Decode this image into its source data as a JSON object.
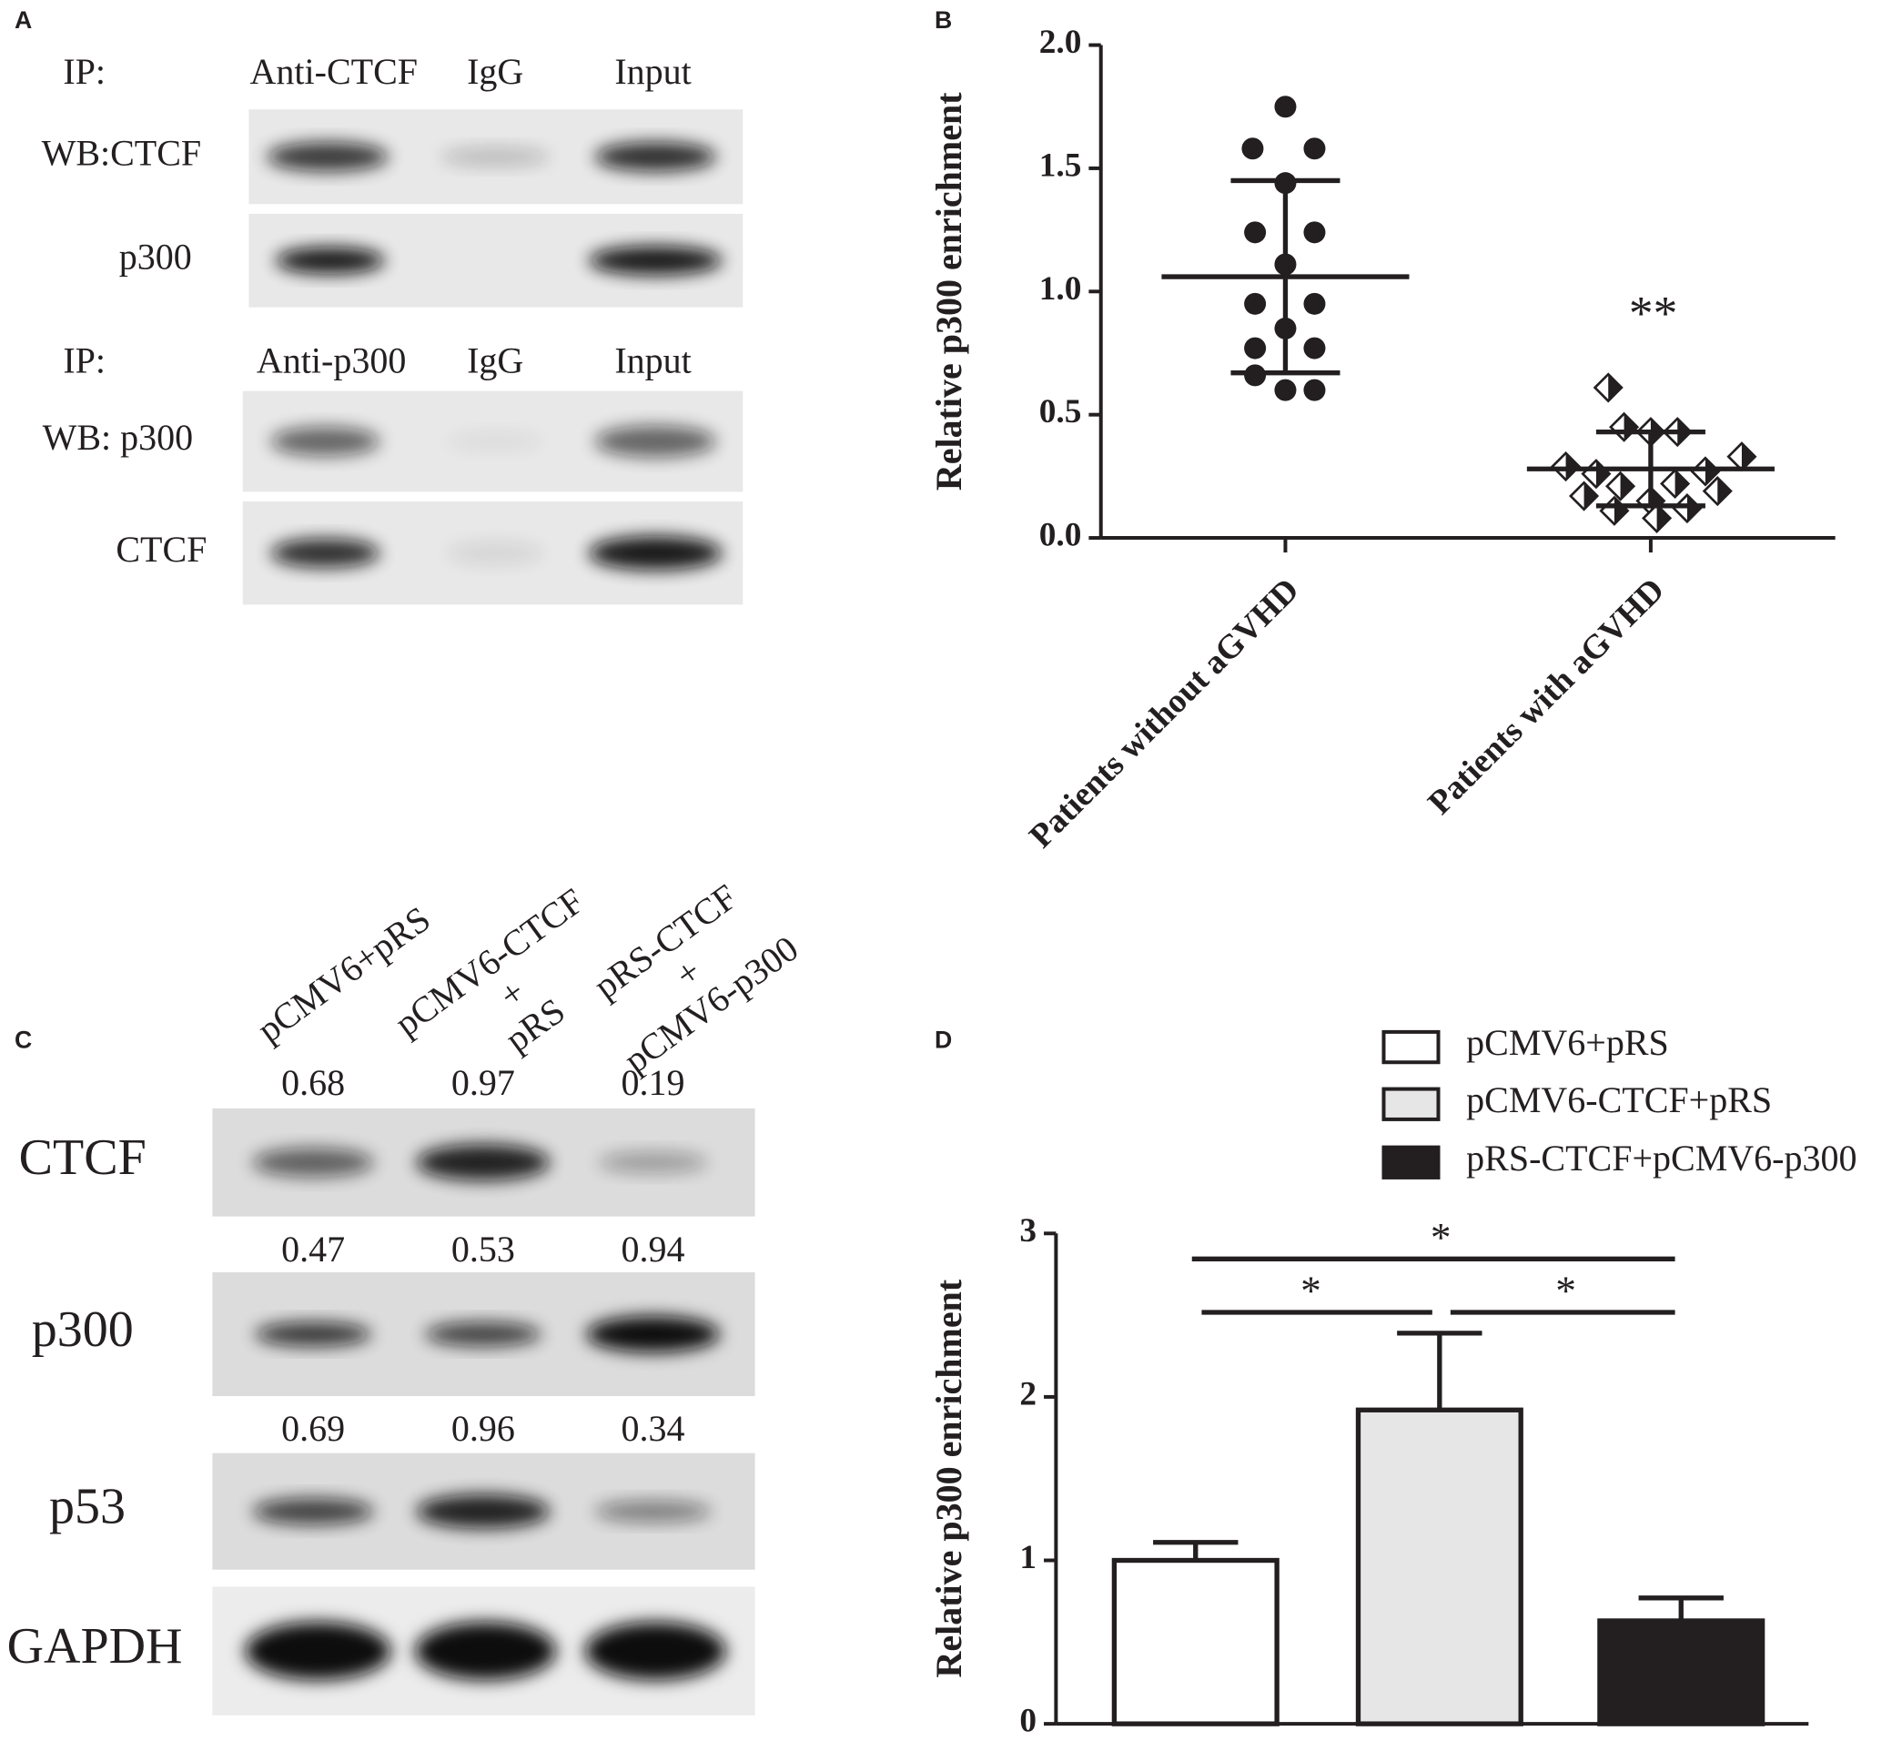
{
  "blot_a": {
    "panel_label": "A",
    "sections": [
      {
        "ip_label": "IP:",
        "columns": [
          "Anti-CTCF",
          "IgG",
          "Input"
        ],
        "rows": [
          "WB:CTCF",
          "p300"
        ]
      },
      {
        "ip_label": "IP:",
        "columns": [
          "Anti-p300",
          "IgG",
          "Input"
        ],
        "rows": [
          "WB: p300",
          "CTCF"
        ]
      }
    ]
  },
  "blot_c": {
    "panel_label": "C",
    "lanes": [
      [
        "pCMV6+pRS"
      ],
      [
        "pCMV6-CTCF",
        "+",
        "pRS"
      ],
      [
        "pRS-CTCF",
        "+",
        "pCMV6-p300"
      ]
    ],
    "rows": [
      {
        "name": "CTCF",
        "values": [
          "0.68",
          "0.97",
          "0.19"
        ]
      },
      {
        "name": "p300",
        "values": [
          "0.47",
          "0.53",
          "0.94"
        ]
      },
      {
        "name": "p53",
        "values": [
          "0.69",
          "0.96",
          "0.34"
        ]
      },
      {
        "name": "GAPDH"
      }
    ]
  },
  "chart_data": [
    {
      "type": "scatter",
      "panel_label": "B",
      "ylabel": "Relative p300 enrichment",
      "categories": [
        "Patients without aGVHD",
        "Patients with aGVHD"
      ],
      "ylim": [
        0,
        2
      ],
      "yticks": [
        {
          "value": 0,
          "label": "0.0"
        },
        {
          "value": 0.5,
          "label": "0.5"
        },
        {
          "value": 1,
          "label": "1.0"
        },
        {
          "value": 1.5,
          "label": "1.5"
        },
        {
          "value": 2,
          "label": "2.0"
        }
      ],
      "series": [
        {
          "marker": "circle",
          "color": "#231f20",
          "values": [
            1.75,
            1.58,
            1.58,
            1.44,
            1.24,
            1.24,
            1.11,
            0.95,
            0.95,
            0.85,
            0.77,
            0.77,
            0.66,
            0.6,
            0.6
          ],
          "mean": 1.06,
          "sd": 0.39
        },
        {
          "marker": "diamond",
          "color": "#231f20",
          "values": [
            0.61,
            0.45,
            0.43,
            0.43,
            0.33,
            0.29,
            0.27,
            0.26,
            0.22,
            0.21,
            0.19,
            0.17,
            0.15,
            0.12,
            0.11,
            0.08
          ],
          "mean": 0.28,
          "sd": 0.15
        }
      ],
      "annotation": "**"
    },
    {
      "type": "bar",
      "panel_label": "D",
      "ylabel": "Relative p300 enrichment",
      "ylim": [
        0,
        3
      ],
      "yticks": [
        0,
        1,
        2,
        3
      ],
      "series": [
        {
          "name": "pCMV6+pRS",
          "color": "#ffffff",
          "values": [
            1.0
          ],
          "errors": [
            0.11
          ]
        },
        {
          "name": "pCMV6-CTCF+pRS",
          "color": "#e6e6e6",
          "values": [
            1.92
          ],
          "errors": [
            0.47
          ]
        },
        {
          "name": "pRS-CTCF+pCMV6-p300",
          "color": "#231f20",
          "values": [
            0.63
          ],
          "errors": [
            0.14
          ]
        }
      ],
      "annotations": [
        "*",
        "*",
        "*"
      ]
    }
  ]
}
